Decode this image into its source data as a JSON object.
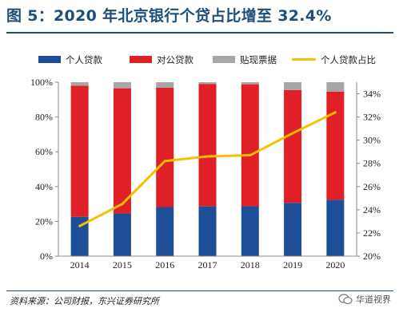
{
  "title": "图 5：2020 年北京银行个贷占比增至 32.4%",
  "source": "资料来源：公司财报，东兴证券研究所",
  "watermark": "华道视界",
  "colors": {
    "title": "#1f4e79",
    "personal_loans": "#1f4e99",
    "corporate_loans": "#e01f26",
    "discounted_bills": "#a6a6a6",
    "personal_share": "#f5c000"
  },
  "chart_data": {
    "type": "bar",
    "stacked": true,
    "percent_stacked": true,
    "categories": [
      "2014",
      "2015",
      "2016",
      "2017",
      "2018",
      "2019",
      "2020"
    ],
    "series": [
      {
        "name": "个人贷款",
        "type": "bar",
        "axis": "left",
        "values": [
          22.6,
          24.5,
          28.2,
          28.6,
          28.7,
          30.6,
          32.4
        ]
      },
      {
        "name": "对公贷款",
        "type": "bar",
        "axis": "left",
        "values": [
          75.4,
          72.0,
          68.7,
          70.4,
          70.1,
          64.9,
          62.2
        ]
      },
      {
        "name": "贴现票据",
        "type": "bar",
        "axis": "left",
        "values": [
          2.0,
          3.5,
          3.1,
          1.0,
          1.2,
          4.5,
          5.4
        ]
      },
      {
        "name": "个人贷款占比",
        "type": "line",
        "axis": "right",
        "values": [
          22.6,
          24.5,
          28.2,
          28.6,
          28.7,
          30.6,
          32.4
        ]
      }
    ],
    "y_left": {
      "min": 0,
      "max": 100,
      "ticks": [
        "0%",
        "20%",
        "40%",
        "60%",
        "80%",
        "100%"
      ]
    },
    "y_right": {
      "min": 20,
      "max": 35,
      "ticks": [
        "20%",
        "22%",
        "24%",
        "26%",
        "28%",
        "30%",
        "32%",
        "34%"
      ]
    },
    "legend_position": "top",
    "grid": false
  }
}
